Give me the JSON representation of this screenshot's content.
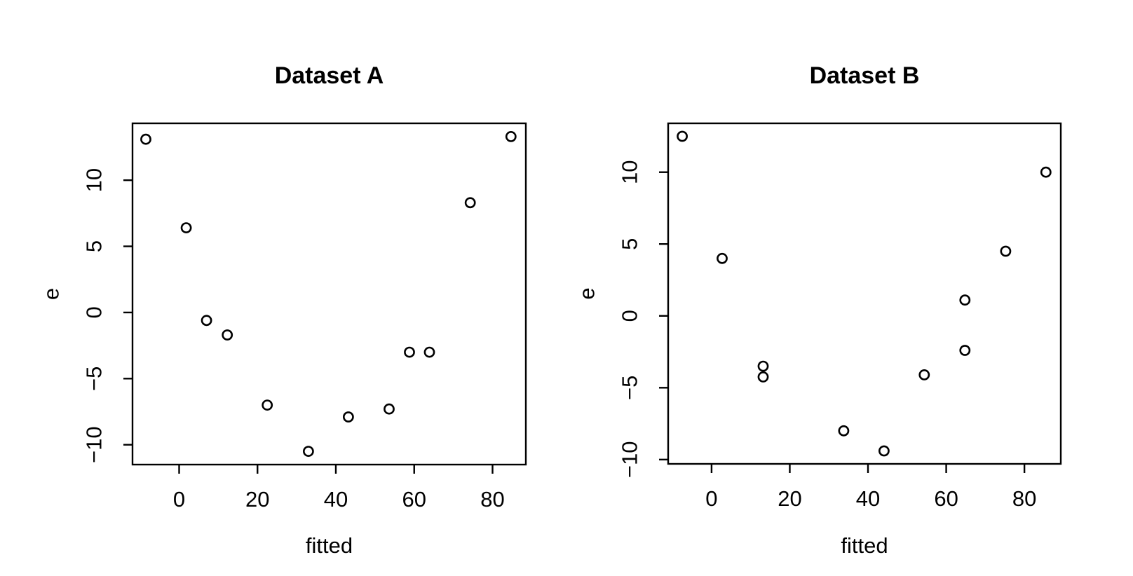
{
  "figure": {
    "background_color": "#ffffff",
    "foreground_color": "#000000",
    "marker": "open-circle",
    "panel_count": 2
  },
  "chart_data": [
    {
      "type": "scatter",
      "title": "Dataset A",
      "xlabel": "fitted",
      "ylabel": "e",
      "x_ticks": [
        0,
        20,
        40,
        60,
        80
      ],
      "y_ticks": [
        -10,
        -5,
        0,
        5,
        10
      ],
      "xlim": [
        -11.9,
        88.5
      ],
      "ylim": [
        -11.5,
        14.3
      ],
      "grid": false,
      "legend": false,
      "points": [
        {
          "x": -8.5,
          "y": 13.1
        },
        {
          "x": 1.8,
          "y": 6.4
        },
        {
          "x": 7.0,
          "y": -0.6
        },
        {
          "x": 12.3,
          "y": -1.7
        },
        {
          "x": 22.5,
          "y": -7.0
        },
        {
          "x": 33.0,
          "y": -10.5
        },
        {
          "x": 43.2,
          "y": -7.9
        },
        {
          "x": 53.6,
          "y": -7.3
        },
        {
          "x": 58.8,
          "y": -3.0
        },
        {
          "x": 63.9,
          "y": -3.0
        },
        {
          "x": 74.3,
          "y": 8.3
        },
        {
          "x": 84.7,
          "y": 13.3
        }
      ]
    },
    {
      "type": "scatter",
      "title": "Dataset B",
      "xlabel": "fitted",
      "ylabel": "e",
      "x_ticks": [
        0,
        20,
        40,
        60,
        80
      ],
      "y_ticks": [
        -10,
        -5,
        0,
        5,
        10
      ],
      "xlim": [
        -11.1,
        89.3
      ],
      "ylim": [
        -10.3,
        13.4
      ],
      "grid": false,
      "legend": false,
      "points": [
        {
          "x": -7.5,
          "y": 12.5
        },
        {
          "x": 2.7,
          "y": 4.0
        },
        {
          "x": 13.2,
          "y": -3.5
        },
        {
          "x": 13.2,
          "y": -4.25
        },
        {
          "x": 33.8,
          "y": -8.0
        },
        {
          "x": 44.1,
          "y": -9.4
        },
        {
          "x": 54.4,
          "y": -4.1
        },
        {
          "x": 64.8,
          "y": 1.1
        },
        {
          "x": 64.8,
          "y": -2.4
        },
        {
          "x": 75.2,
          "y": 4.5
        },
        {
          "x": 85.5,
          "y": 10.0
        }
      ]
    }
  ]
}
